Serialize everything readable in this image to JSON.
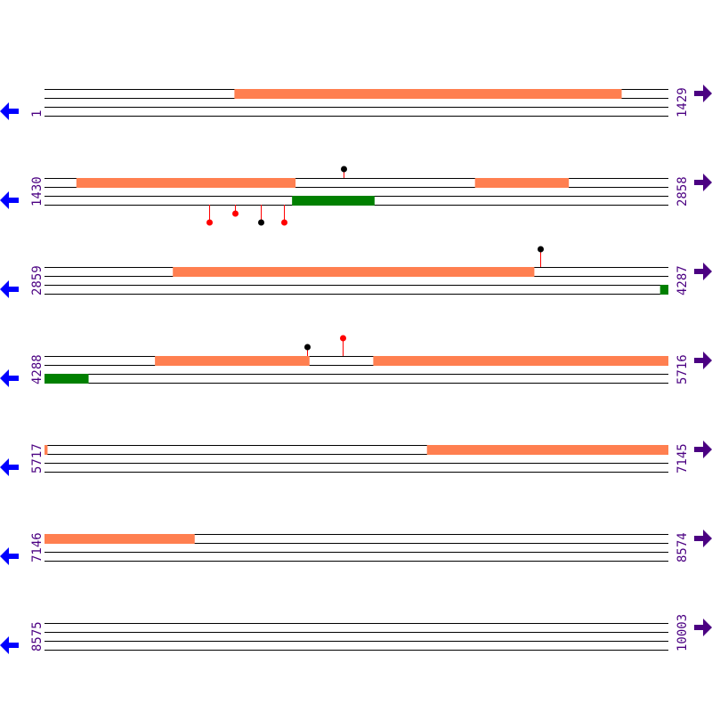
{
  "colors": {
    "line": "#000000",
    "feature_a": "#ff7f50",
    "feature_b": "#008000",
    "label": "#4b0082",
    "left_arrow": "#0000ff",
    "right_arrow": "#4b0082",
    "marker_stem": "#ff0000"
  },
  "icons": {
    "left": "arrow-left-icon",
    "right": "arrow-right-icon"
  },
  "rows": [
    {
      "start": "1",
      "end": "1429",
      "s": 1,
      "e": 1429,
      "orange": [
        [
          436,
          1322
        ]
      ],
      "green": [],
      "markers": []
    },
    {
      "start": "1430",
      "end": "2858",
      "s": 1430,
      "e": 2858,
      "orange": [
        [
          1503,
          2004
        ],
        [
          2416,
          2630
        ]
      ],
      "green": [
        [
          1997,
          2185
        ]
      ],
      "markers": [
        {
          "pos": 2114,
          "side": "top",
          "level": 1,
          "color": "#000000"
        },
        {
          "pos": 1808,
          "side": "bottom",
          "level": 2,
          "color": "#ff0000"
        },
        {
          "pos": 1867,
          "side": "bottom",
          "level": 1,
          "color": "#ff0000"
        },
        {
          "pos": 1926,
          "side": "bottom",
          "level": 2,
          "color": "#000000"
        },
        {
          "pos": 1979,
          "side": "bottom",
          "level": 2,
          "color": "#ff0000"
        }
      ]
    },
    {
      "start": "2859",
      "end": "4287",
      "s": 2859,
      "e": 4287,
      "orange": [
        [
          3153,
          3980
        ]
      ],
      "green": [
        [
          4269,
          4287
        ]
      ],
      "markers": [
        {
          "pos": 3994,
          "side": "top",
          "level": 2,
          "color": "#000000"
        }
      ]
    },
    {
      "start": "4288",
      "end": "5716",
      "s": 4288,
      "e": 5716,
      "orange": [
        [
          4541,
          4894
        ],
        [
          5041,
          5716
        ]
      ],
      "green": [
        [
          4288,
          4388
        ]
      ],
      "markers": [
        {
          "pos": 4890,
          "side": "top",
          "level": 1,
          "color": "#000000"
        },
        {
          "pos": 4970,
          "side": "top",
          "level": 2,
          "color": "#ff0000"
        }
      ]
    },
    {
      "start": "5717",
      "end": "7145",
      "s": 5717,
      "e": 7145,
      "orange": [
        [
          5717,
          5723
        ],
        [
          6593,
          7145
        ]
      ],
      "green": [],
      "markers": []
    },
    {
      "start": "7146",
      "end": "8574",
      "s": 7146,
      "e": 8574,
      "orange": [
        [
          7146,
          7489
        ]
      ],
      "green": [],
      "markers": []
    },
    {
      "start": "8575",
      "end": "10003",
      "s": 8575,
      "e": 10003,
      "orange": [],
      "green": [],
      "markers": []
    }
  ]
}
